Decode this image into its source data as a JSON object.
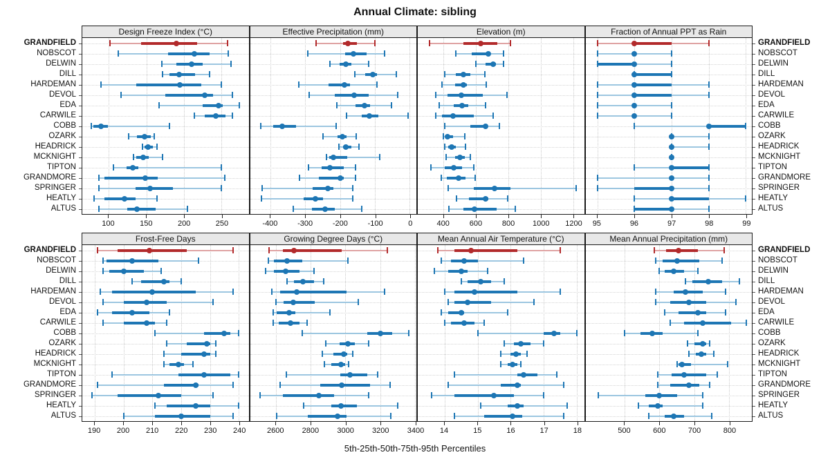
{
  "colors": {
    "normal": "#1d76b4",
    "normal_light": "#9cc6e0",
    "highlight": "#b22a2b",
    "highlight_light": "#dfa3a3",
    "strip_bg": "#e8e8e8",
    "grid": "#c9c9c9"
  },
  "chart_data": {
    "type": "percentile-dotplot",
    "title": "Annual Climate: sibling",
    "xlabel": "5th-25th-50th-75th-95th Percentiles",
    "percentile_labels": [
      "5th",
      "25th",
      "50th",
      "75th",
      "95th"
    ],
    "layout": {
      "rows": 2,
      "cols": 4,
      "grid": true,
      "station_labels": "both-sides"
    },
    "highlight_station": "GRANDFIELD",
    "stations": [
      "GRANDFIELD",
      "NOBSCOT",
      "DELWIN",
      "DILL",
      "HARDEMAN",
      "DEVOL",
      "EDA",
      "CARWILE",
      "COBB",
      "OZARK",
      "HEADRICK",
      "MCKNIGHT",
      "TIPTON",
      "GRANDMORE",
      "SPRINGER",
      "HEATLY",
      "ALTUS"
    ],
    "panels": [
      {
        "title": "Design Freeze Index (°C)",
        "domain": [
          65,
          286
        ],
        "ticks": [
          100,
          150,
          200,
          250
        ],
        "values": [
          [
            102,
            143,
            190,
            218,
            258
          ],
          [
            113,
            179,
            214,
            234,
            259
          ],
          [
            171,
            190,
            210,
            225,
            263
          ],
          [
            172,
            181,
            194,
            215,
            234
          ],
          [
            90,
            137,
            195,
            223,
            250
          ],
          [
            116,
            175,
            228,
            239,
            264
          ],
          [
            167,
            225,
            246,
            252,
            274
          ],
          [
            214,
            228,
            242,
            255,
            264
          ],
          [
            77,
            80,
            90,
            99,
            181
          ],
          [
            127,
            138,
            148,
            156,
            161
          ],
          [
            145,
            148,
            152,
            159,
            164
          ],
          [
            133,
            137,
            146,
            153,
            172
          ],
          [
            106,
            124,
            132,
            139,
            250
          ],
          [
            87,
            94,
            149,
            165,
            254
          ],
          [
            87,
            136,
            155,
            185,
            250
          ],
          [
            81,
            94,
            121,
            136,
            164
          ],
          [
            87,
            125,
            138,
            162,
            205
          ]
        ]
      },
      {
        "title": "Effective Precipitation (mm)",
        "domain": [
          -459,
          19
        ],
        "ticks": [
          -400,
          -300,
          -200,
          -100,
          0
        ],
        "values": [
          [
            -270,
            -192,
            -178,
            -152,
            -100
          ],
          [
            -294,
            -185,
            -161,
            -124,
            -72
          ],
          [
            -229,
            -201,
            -184,
            -167,
            -119
          ],
          [
            -157,
            -128,
            -106,
            -94,
            -38
          ],
          [
            -318,
            -234,
            -187,
            -172,
            -94
          ],
          [
            -289,
            -216,
            -159,
            -118,
            -35
          ],
          [
            -210,
            -156,
            -131,
            -114,
            -52
          ],
          [
            -181,
            -139,
            -116,
            -91,
            -5
          ],
          [
            -429,
            -393,
            -367,
            -327,
            -212
          ],
          [
            -250,
            -207,
            -194,
            -181,
            -154
          ],
          [
            -204,
            -192,
            -183,
            -167,
            -146
          ],
          [
            -239,
            -232,
            -219,
            -179,
            -86
          ],
          [
            -292,
            -254,
            -229,
            -189,
            -156
          ],
          [
            -317,
            -262,
            -199,
            -189,
            -156
          ],
          [
            -425,
            -280,
            -236,
            -219,
            -164
          ],
          [
            -427,
            -305,
            -272,
            -249,
            -163
          ],
          [
            -334,
            -282,
            -244,
            -216,
            -139
          ]
        ]
      },
      {
        "title": "Elevation (m)",
        "domain": [
          240,
          1268
        ],
        "ticks": [
          400,
          600,
          800,
          1000,
          1200
        ],
        "values": [
          [
            313,
            524,
            627,
            731,
            814
          ],
          [
            474,
            574,
            677,
            691,
            771
          ],
          [
            600,
            657,
            706,
            724,
            771
          ],
          [
            406,
            477,
            520,
            567,
            653
          ],
          [
            391,
            471,
            520,
            543,
            663
          ],
          [
            349,
            424,
            510,
            643,
            791
          ],
          [
            371,
            463,
            514,
            553,
            657
          ],
          [
            349,
            391,
            457,
            586,
            706
          ],
          [
            406,
            563,
            657,
            671,
            743
          ],
          [
            400,
            410,
            424,
            457,
            529
          ],
          [
            406,
            429,
            449,
            477,
            534
          ],
          [
            414,
            471,
            500,
            529,
            563
          ],
          [
            320,
            406,
            463,
            514,
            586
          ],
          [
            386,
            420,
            491,
            534,
            596
          ],
          [
            429,
            586,
            714,
            814,
            1220
          ],
          [
            480,
            557,
            660,
            675,
            795
          ],
          [
            434,
            524,
            591,
            729,
            843
          ]
        ]
      },
      {
        "title": "Fraction of Annual PPT as Rain",
        "domain": [
          94.68,
          99.16
        ],
        "ticks": [
          95,
          96,
          97,
          98,
          99
        ],
        "values": [
          [
            95,
            96,
            96,
            97,
            98
          ],
          [
            95,
            96,
            96,
            96,
            97
          ],
          [
            95,
            95,
            96,
            96,
            97
          ],
          [
            96,
            96,
            96,
            97,
            97
          ],
          [
            95,
            96,
            96,
            97,
            98
          ],
          [
            95,
            96,
            96,
            97,
            98
          ],
          [
            95,
            96,
            96,
            96,
            97
          ],
          [
            95,
            96,
            96,
            96,
            97
          ],
          [
            96,
            98,
            98,
            99,
            99
          ],
          [
            97,
            97,
            97,
            97,
            98
          ],
          [
            97,
            97,
            97,
            97,
            98
          ],
          [
            97,
            97,
            97,
            97,
            97
          ],
          [
            96,
            97,
            97,
            98,
            98
          ],
          [
            95,
            97,
            97,
            97,
            98
          ],
          [
            95,
            96,
            97,
            97,
            98
          ],
          [
            96,
            97,
            97,
            98,
            99
          ],
          [
            96,
            96,
            97,
            97,
            98
          ]
        ]
      },
      {
        "title": "Frost-Free Days",
        "domain": [
          185.7,
          243.4
        ],
        "ticks": [
          190,
          200,
          210,
          220,
          230,
          240
        ],
        "values": [
          [
            191,
            198,
            209,
            222,
            238
          ],
          [
            193,
            194,
            203,
            212,
            226
          ],
          [
            193,
            195,
            200,
            207,
            213
          ],
          [
            203,
            206,
            214,
            216,
            220
          ],
          [
            192,
            196,
            210,
            225,
            238
          ],
          [
            193,
            200,
            208,
            215,
            231
          ],
          [
            191,
            196,
            203,
            209,
            216
          ],
          [
            193,
            200,
            208,
            211,
            215
          ],
          [
            211,
            228,
            235,
            237,
            240
          ],
          [
            215,
            222,
            229,
            230,
            232
          ],
          [
            214,
            220,
            228,
            230,
            232
          ],
          [
            214,
            216,
            219,
            221,
            224
          ],
          [
            196,
            219,
            228,
            237,
            240
          ],
          [
            191,
            214,
            225,
            226,
            238
          ],
          [
            189,
            198,
            212,
            220,
            231
          ],
          [
            211,
            215,
            225,
            230,
            240
          ],
          [
            200,
            211,
            220,
            230,
            238
          ]
        ]
      },
      {
        "title": "Growing Degree Days (°C)",
        "domain": [
          2451,
          3408
        ],
        "ticks": [
          2600,
          2800,
          3000,
          3200,
          3400
        ],
        "values": [
          [
            2560,
            2640,
            2705,
            2980,
            3240
          ],
          [
            2555,
            2590,
            2665,
            2750,
            3015
          ],
          [
            2540,
            2590,
            2655,
            2735,
            2820
          ],
          [
            2665,
            2705,
            2755,
            2820,
            2875
          ],
          [
            2575,
            2625,
            2720,
            3005,
            3225
          ],
          [
            2600,
            2645,
            2700,
            2825,
            3075
          ],
          [
            2585,
            2605,
            2675,
            2710,
            2910
          ],
          [
            2585,
            2615,
            2685,
            2735,
            2780
          ],
          [
            2750,
            3125,
            3200,
            3270,
            3365
          ],
          [
            2885,
            2965,
            3015,
            3055,
            3135
          ],
          [
            2865,
            2930,
            2990,
            3010,
            3040
          ],
          [
            2880,
            2920,
            2975,
            3000,
            3020
          ],
          [
            2660,
            2970,
            3025,
            3125,
            3185
          ],
          [
            2625,
            2855,
            2980,
            3140,
            3255
          ],
          [
            2510,
            2640,
            2845,
            2935,
            3135
          ],
          [
            2760,
            2920,
            2975,
            3065,
            3300
          ],
          [
            2605,
            2785,
            2955,
            3005,
            3260
          ]
        ]
      },
      {
        "title": "Mean Annual Air Temperature (°C)",
        "domain": [
          13.19,
          18.22
        ],
        "ticks": [
          14,
          15,
          16,
          17,
          18
        ],
        "values": [
          [
            13.8,
            14.3,
            14.8,
            16.2,
            17.5
          ],
          [
            13.9,
            14.2,
            14.6,
            15.0,
            16.4
          ],
          [
            13.7,
            14.1,
            14.5,
            14.7,
            15.3
          ],
          [
            14.5,
            14.7,
            15.1,
            15.4,
            15.8
          ],
          [
            14.0,
            14.3,
            14.9,
            16.2,
            17.5
          ],
          [
            14.1,
            14.3,
            14.7,
            15.4,
            16.7
          ],
          [
            13.9,
            14.1,
            14.5,
            14.6,
            15.9
          ],
          [
            14.0,
            14.2,
            14.6,
            14.9,
            15.2
          ],
          [
            15.0,
            17.0,
            17.3,
            17.5,
            18.0
          ],
          [
            15.8,
            16.1,
            16.3,
            16.6,
            17.0
          ],
          [
            15.7,
            16.0,
            16.15,
            16.3,
            16.5
          ],
          [
            15.7,
            15.9,
            16.05,
            16.2,
            16.3
          ],
          [
            14.3,
            16.2,
            16.4,
            16.8,
            17.4
          ],
          [
            14.1,
            15.7,
            16.2,
            16.3,
            17.6
          ],
          [
            13.6,
            14.3,
            15.5,
            16.1,
            17.0
          ],
          [
            15.1,
            15.9,
            16.2,
            16.4,
            17.7
          ],
          [
            14.3,
            15.2,
            16.05,
            16.35,
            17.6
          ]
        ]
      },
      {
        "title": "Mean Annual Precipitation (mm)",
        "domain": [
          388,
          865
        ],
        "ticks": [
          500,
          600,
          700,
          800
        ],
        "values": [
          [
            585,
            620,
            655,
            710,
            785
          ],
          [
            590,
            610,
            650,
            715,
            780
          ],
          [
            600,
            615,
            640,
            670,
            710
          ],
          [
            675,
            695,
            740,
            780,
            830
          ],
          [
            590,
            640,
            675,
            725,
            790
          ],
          [
            590,
            630,
            685,
            735,
            820
          ],
          [
            615,
            655,
            710,
            735,
            790
          ],
          [
            630,
            670,
            725,
            805,
            850
          ],
          [
            500,
            545,
            580,
            610,
            710
          ],
          [
            680,
            700,
            725,
            735,
            745
          ],
          [
            685,
            705,
            720,
            735,
            755
          ],
          [
            650,
            655,
            665,
            690,
            795
          ],
          [
            595,
            635,
            670,
            735,
            765
          ],
          [
            595,
            630,
            685,
            715,
            745
          ],
          [
            425,
            560,
            600,
            650,
            725
          ],
          [
            540,
            570,
            595,
            610,
            725
          ],
          [
            570,
            615,
            640,
            670,
            750
          ]
        ]
      }
    ]
  }
}
